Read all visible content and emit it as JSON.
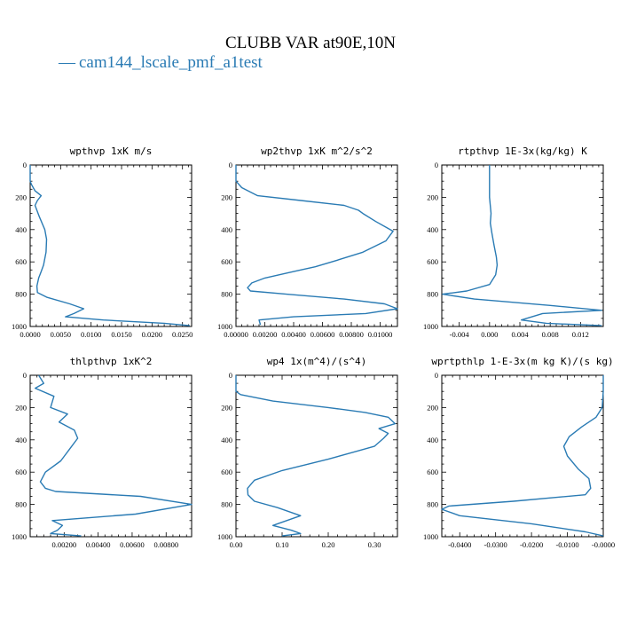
{
  "figure": {
    "title": "CLUBB VAR at90E,10N",
    "legend": {
      "marker": "—",
      "label": "cam144_lscale_pmf_a1test",
      "color": "#2a7bb4"
    }
  },
  "chart_data": [
    {
      "type": "line",
      "title": "wpthvp   1xK m/s",
      "xlim": [
        0,
        0.0265
      ],
      "ylim": [
        1000,
        0
      ],
      "xticks": [
        0,
        0.005,
        0.01,
        0.015,
        0.02,
        0.025
      ],
      "xtick_labels": [
        "0.0000",
        "0.0050",
        "0.0100",
        "0.0150",
        "0.0200",
        "0.0250"
      ],
      "yticks": [
        0,
        200,
        400,
        600,
        800,
        1000
      ],
      "ytick_labels": [
        "0",
        "200",
        "400",
        "600",
        "800",
        "1000"
      ],
      "series": [
        {
          "name": "cam144_lscale_pmf_a1test",
          "x": [
            0,
            0,
            0.0002,
            0.0008,
            0.0018,
            0.0012,
            0.0008,
            0.0015,
            0.0024,
            0.0027,
            0.0026,
            0.0022,
            0.0018,
            0.0014,
            0.0011,
            0.0012,
            0.0028,
            0.0065,
            0.0088,
            0.0072,
            0.0058,
            0.012,
            0.022,
            0.0262
          ],
          "y": [
            0,
            100,
            120,
            160,
            190,
            220,
            250,
            320,
            400,
            460,
            540,
            620,
            660,
            700,
            750,
            790,
            820,
            860,
            890,
            920,
            940,
            960,
            980,
            995
          ]
        }
      ]
    },
    {
      "type": "line",
      "title": "wp2thvp   1xK m^2/s^2",
      "xlim": [
        0,
        0.0112
      ],
      "ylim": [
        1000,
        0
      ],
      "xticks": [
        0,
        0.002,
        0.004,
        0.006,
        0.008,
        0.01
      ],
      "xtick_labels": [
        "0.00000",
        "0.00200",
        "0.00400",
        "0.00600",
        "0.00800",
        "0.01000"
      ],
      "yticks": [
        0,
        200,
        400,
        600,
        800,
        1000
      ],
      "ytick_labels": [
        "0",
        "200",
        "400",
        "600",
        "800",
        "1000"
      ],
      "series": [
        {
          "name": "cam144_lscale_pmf_a1test",
          "x": [
            0,
            0,
            0.0004,
            0.0015,
            0.0045,
            0.0075,
            0.0085,
            0.0088,
            0.0097,
            0.0109,
            0.0104,
            0.0088,
            0.007,
            0.0055,
            0.004,
            0.002,
            0.0011,
            0.0008,
            0.001,
            0.0035,
            0.0075,
            0.0103,
            0.0112,
            0.009,
            0.004,
            0.0016,
            0.0017
          ],
          "y": [
            0,
            100,
            140,
            190,
            220,
            250,
            280,
            300,
            350,
            410,
            470,
            540,
            590,
            630,
            660,
            700,
            730,
            760,
            780,
            800,
            830,
            860,
            890,
            920,
            940,
            960,
            990
          ]
        }
      ]
    },
    {
      "type": "line",
      "title": "rtpthvp   1E-3x(kg/kg) K",
      "xlim": [
        -0.0063,
        0.015
      ],
      "ylim": [
        1000,
        0
      ],
      "xticks": [
        -0.004,
        0,
        0.004,
        0.008,
        0.012
      ],
      "xtick_labels": [
        "-0.004",
        "0.000",
        "0.004",
        "0.008",
        "0.012"
      ],
      "yticks": [
        0,
        200,
        400,
        600,
        800,
        1000
      ],
      "ytick_labels": [
        "0",
        "200",
        "400",
        "600",
        "800",
        "1000"
      ],
      "series": [
        {
          "name": "cam144_lscale_pmf_a1test",
          "x": [
            0,
            0,
            0.0002,
            0.0001,
            0.0003,
            0.0006,
            0.0009,
            0.001,
            0.0008,
            0,
            -0.003,
            -0.0062,
            -0.002,
            0.008,
            0.0148,
            0.007,
            0.0042,
            0.0075,
            0.0148
          ],
          "y": [
            0,
            200,
            300,
            360,
            420,
            500,
            570,
            620,
            680,
            740,
            780,
            800,
            830,
            870,
            900,
            920,
            960,
            980,
            995
          ]
        }
      ]
    },
    {
      "type": "line",
      "title": "thlpthvp   1xK^2",
      "xlim": [
        0,
        0.0095
      ],
      "ylim": [
        1000,
        0
      ],
      "xticks": [
        0.002,
        0.004,
        0.006,
        0.008
      ],
      "xtick_labels": [
        "0.00200",
        "0.00400",
        "0.00600",
        "0.00800"
      ],
      "yticks": [
        0,
        200,
        400,
        600,
        800,
        1000
      ],
      "ytick_labels": [
        "0",
        "200",
        "400",
        "600",
        "800",
        "1000"
      ],
      "series": [
        {
          "name": "cam144_lscale_pmf_a1test",
          "x": [
            0.0005,
            0.0008,
            0.0003,
            0.0014,
            0.0012,
            0.0022,
            0.0017,
            0.0026,
            0.0028,
            0.0023,
            0.0018,
            0.0009,
            0.0006,
            0.0009,
            0.0015,
            0.0065,
            0.0095,
            0.0062,
            0.0013,
            0.0019,
            0.0016,
            0.0012,
            0.003
          ],
          "y": [
            0,
            50,
            80,
            130,
            200,
            240,
            290,
            340,
            390,
            460,
            530,
            600,
            660,
            700,
            720,
            750,
            800,
            860,
            900,
            930,
            960,
            980,
            995
          ]
        }
      ]
    },
    {
      "type": "line",
      "title": "wp4   1x(m^4)/(s^4)",
      "xlim": [
        0,
        0.35
      ],
      "ylim": [
        1000,
        0
      ],
      "xticks": [
        0,
        0.1,
        0.2,
        0.3
      ],
      "xtick_labels": [
        "0.00",
        "0.10",
        "0.20",
        "0.30"
      ],
      "yticks": [
        0,
        200,
        400,
        600,
        800,
        1000
      ],
      "ytick_labels": [
        "0",
        "200",
        "400",
        "600",
        "800",
        "1000"
      ],
      "series": [
        {
          "name": "cam144_lscale_pmf_a1test",
          "x": [
            0,
            0,
            0.01,
            0.08,
            0.2,
            0.28,
            0.33,
            0.345,
            0.31,
            0.33,
            0.32,
            0.3,
            0.2,
            0.1,
            0.04,
            0.025,
            0.026,
            0.04,
            0.09,
            0.14,
            0.11,
            0.08,
            0.12,
            0.14,
            0.1
          ],
          "y": [
            0,
            100,
            120,
            160,
            200,
            230,
            260,
            300,
            330,
            360,
            390,
            440,
            520,
            590,
            650,
            700,
            740,
            780,
            820,
            870,
            900,
            930,
            960,
            980,
            995
          ]
        }
      ]
    },
    {
      "type": "line",
      "title": "wprtpthlp   1-E-3x(m kg K)/(s kg)",
      "xlim": [
        -0.045,
        0
      ],
      "ylim": [
        1000,
        0
      ],
      "xticks": [
        -0.04,
        -0.03,
        -0.02,
        -0.01,
        0
      ],
      "xtick_labels": [
        "-0.0400",
        "-0.0300",
        "-0.0200",
        "-0.0100",
        "-0.0000"
      ],
      "yticks": [
        0,
        200,
        400,
        600,
        800,
        1000
      ],
      "ytick_labels": [
        "0",
        "200",
        "400",
        "600",
        "800",
        "1000"
      ],
      "series": [
        {
          "name": "cam144_lscale_pmf_a1test",
          "x": [
            0,
            0,
            -0.0003,
            -0.002,
            -0.006,
            -0.0095,
            -0.011,
            -0.01,
            -0.007,
            -0.004,
            -0.0035,
            -0.005,
            -0.025,
            -0.043,
            -0.045,
            -0.04,
            -0.02,
            -0.005,
            0
          ],
          "y": [
            0,
            100,
            200,
            260,
            320,
            380,
            440,
            500,
            580,
            640,
            700,
            740,
            780,
            810,
            830,
            870,
            920,
            970,
            995
          ]
        }
      ]
    }
  ]
}
